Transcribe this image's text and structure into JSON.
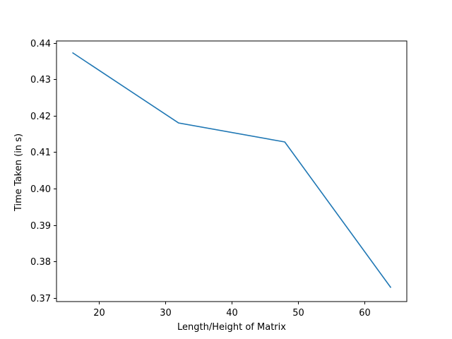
{
  "chart_data": {
    "type": "line",
    "title": "",
    "xlabel": "Length/Height of Matrix",
    "ylabel": "Time Taken (in s)",
    "xlim": [
      13.6,
      66.4
    ],
    "ylim": [
      0.369,
      0.4405
    ],
    "xticks": [
      20,
      30,
      40,
      50,
      60
    ],
    "yticks": [
      0.37,
      0.38,
      0.39,
      0.4,
      0.41,
      0.42,
      0.43,
      0.44
    ],
    "xtick_labels": [
      "20",
      "30",
      "40",
      "50",
      "60"
    ],
    "ytick_labels": [
      "0.37",
      "0.38",
      "0.39",
      "0.40",
      "0.41",
      "0.42",
      "0.43",
      "0.44"
    ],
    "grid": false,
    "series": [
      {
        "color": "#1f77b4",
        "x": [
          16,
          32,
          48,
          64
        ],
        "y": [
          0.4373,
          0.418,
          0.4128,
          0.3728
        ]
      }
    ]
  }
}
